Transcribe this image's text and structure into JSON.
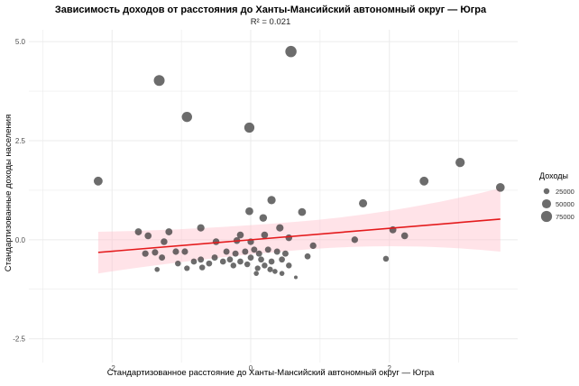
{
  "chart_data": {
    "type": "scatter",
    "title": "Зависимость доходов от расстояния до Ханты-Мансийский автономный округ — Югра",
    "subtitle": "R² = 0.021",
    "xlabel": "Стандартизованное расстояние до Ханты-Мансийский автономный округ — Югра",
    "ylabel": "Стандартизованные доходы населения",
    "xlim": [
      -3.2,
      3.85
    ],
    "ylim": [
      -3.1,
      5.3
    ],
    "x_ticks": [
      -2,
      0,
      2
    ],
    "x_tick_labels": [
      "-2",
      "0",
      "2"
    ],
    "y_ticks": [
      -2.5,
      0,
      2.5,
      5
    ],
    "y_tick_labels": [
      "-2.5",
      "0.0",
      "2.5",
      "5.0"
    ],
    "grid": true,
    "legend": {
      "title": "Доходы",
      "position": "right",
      "size_values": [
        25000,
        50000,
        75000
      ],
      "labels": [
        "25000",
        "50000",
        "75000"
      ]
    },
    "trend": {
      "x": [
        -2.2,
        3.6
      ],
      "y": [
        -0.32,
        0.52
      ],
      "ci_lower": [
        -0.85,
        -0.3
      ],
      "ci_upper": [
        0.2,
        1.3
      ],
      "color": "#e41a1c",
      "band_color": "#ffc0cb"
    },
    "point_color": "#333333",
    "points": [
      {
        "x": 0.58,
        "y": 4.75,
        "income": 78000
      },
      {
        "x": -1.32,
        "y": 4.02,
        "income": 72000
      },
      {
        "x": -0.92,
        "y": 3.1,
        "income": 64000
      },
      {
        "x": -0.02,
        "y": 2.83,
        "income": 62000
      },
      {
        "x": -2.2,
        "y": 1.48,
        "income": 48000
      },
      {
        "x": 2.5,
        "y": 1.48,
        "income": 48000
      },
      {
        "x": 3.02,
        "y": 1.95,
        "income": 52000
      },
      {
        "x": 3.6,
        "y": 1.32,
        "income": 46000
      },
      {
        "x": 0.3,
        "y": 1.0,
        "income": 42000
      },
      {
        "x": 1.62,
        "y": 0.92,
        "income": 41000
      },
      {
        "x": 0.74,
        "y": 0.7,
        "income": 38000
      },
      {
        "x": -0.02,
        "y": 0.72,
        "income": 38000
      },
      {
        "x": 0.18,
        "y": 0.55,
        "income": 36000
      },
      {
        "x": -0.72,
        "y": 0.3,
        "income": 34000
      },
      {
        "x": 0.42,
        "y": 0.3,
        "income": 34000
      },
      {
        "x": -1.62,
        "y": 0.2,
        "income": 32000
      },
      {
        "x": -1.18,
        "y": 0.2,
        "income": 32000
      },
      {
        "x": 2.05,
        "y": 0.25,
        "income": 32000
      },
      {
        "x": 2.22,
        "y": 0.1,
        "income": 31000
      },
      {
        "x": -1.48,
        "y": 0.1,
        "income": 31000
      },
      {
        "x": -0.15,
        "y": 0.12,
        "income": 31000
      },
      {
        "x": 0.2,
        "y": 0.12,
        "income": 31000
      },
      {
        "x": -1.25,
        "y": -0.05,
        "income": 30000
      },
      {
        "x": -0.5,
        "y": -0.05,
        "income": 30000
      },
      {
        "x": -0.2,
        "y": -0.02,
        "income": 30000
      },
      {
        "x": 0.55,
        "y": 0.05,
        "income": 30000
      },
      {
        "x": 0.0,
        "y": -0.05,
        "income": 29000
      },
      {
        "x": 0.9,
        "y": -0.15,
        "income": 29000
      },
      {
        "x": 1.5,
        "y": 0.0,
        "income": 29000
      },
      {
        "x": -1.08,
        "y": -0.3,
        "income": 28000
      },
      {
        "x": -0.95,
        "y": -0.3,
        "income": 28000
      },
      {
        "x": -1.38,
        "y": -0.32,
        "income": 28000
      },
      {
        "x": -1.52,
        "y": -0.35,
        "income": 28000
      },
      {
        "x": -1.28,
        "y": -0.45,
        "income": 27000
      },
      {
        "x": -0.72,
        "y": -0.5,
        "income": 27000
      },
      {
        "x": -0.52,
        "y": -0.45,
        "income": 27000
      },
      {
        "x": -0.35,
        "y": -0.3,
        "income": 27000
      },
      {
        "x": -0.22,
        "y": -0.35,
        "income": 27000
      },
      {
        "x": -0.08,
        "y": -0.3,
        "income": 27000
      },
      {
        "x": 0.05,
        "y": -0.25,
        "income": 27000
      },
      {
        "x": 0.12,
        "y": -0.35,
        "income": 27000
      },
      {
        "x": 0.25,
        "y": -0.25,
        "income": 27000
      },
      {
        "x": 0.38,
        "y": -0.3,
        "income": 27000
      },
      {
        "x": 0.5,
        "y": -0.35,
        "income": 27000
      },
      {
        "x": 0.82,
        "y": -0.42,
        "income": 26000
      },
      {
        "x": 1.95,
        "y": -0.48,
        "income": 25000
      },
      {
        "x": -0.82,
        "y": -0.55,
        "income": 26000
      },
      {
        "x": -0.6,
        "y": -0.6,
        "income": 26000
      },
      {
        "x": -0.4,
        "y": -0.55,
        "income": 26000
      },
      {
        "x": -0.3,
        "y": -0.5,
        "income": 26000
      },
      {
        "x": -0.15,
        "y": -0.55,
        "income": 26000
      },
      {
        "x": 0.0,
        "y": -0.45,
        "income": 26000
      },
      {
        "x": 0.15,
        "y": -0.5,
        "income": 26000
      },
      {
        "x": 0.3,
        "y": -0.55,
        "income": 26000
      },
      {
        "x": 0.45,
        "y": -0.5,
        "income": 26000
      },
      {
        "x": -1.05,
        "y": -0.6,
        "income": 25000
      },
      {
        "x": -0.7,
        "y": -0.7,
        "income": 25000
      },
      {
        "x": -0.25,
        "y": -0.65,
        "income": 25000
      },
      {
        "x": -0.05,
        "y": -0.62,
        "income": 25000
      },
      {
        "x": 0.2,
        "y": -0.65,
        "income": 25000
      },
      {
        "x": 0.55,
        "y": -0.65,
        "income": 25000
      },
      {
        "x": -0.92,
        "y": -0.72,
        "income": 24000
      },
      {
        "x": 0.1,
        "y": -0.72,
        "income": 24000
      },
      {
        "x": 0.28,
        "y": -0.75,
        "income": 24000
      },
      {
        "x": -1.35,
        "y": -0.75,
        "income": 22000
      },
      {
        "x": 0.08,
        "y": -0.85,
        "income": 22000
      },
      {
        "x": 0.35,
        "y": -0.8,
        "income": 22000
      },
      {
        "x": 0.45,
        "y": -0.85,
        "income": 22000
      },
      {
        "x": 0.65,
        "y": -0.95,
        "income": 20000
      }
    ]
  }
}
